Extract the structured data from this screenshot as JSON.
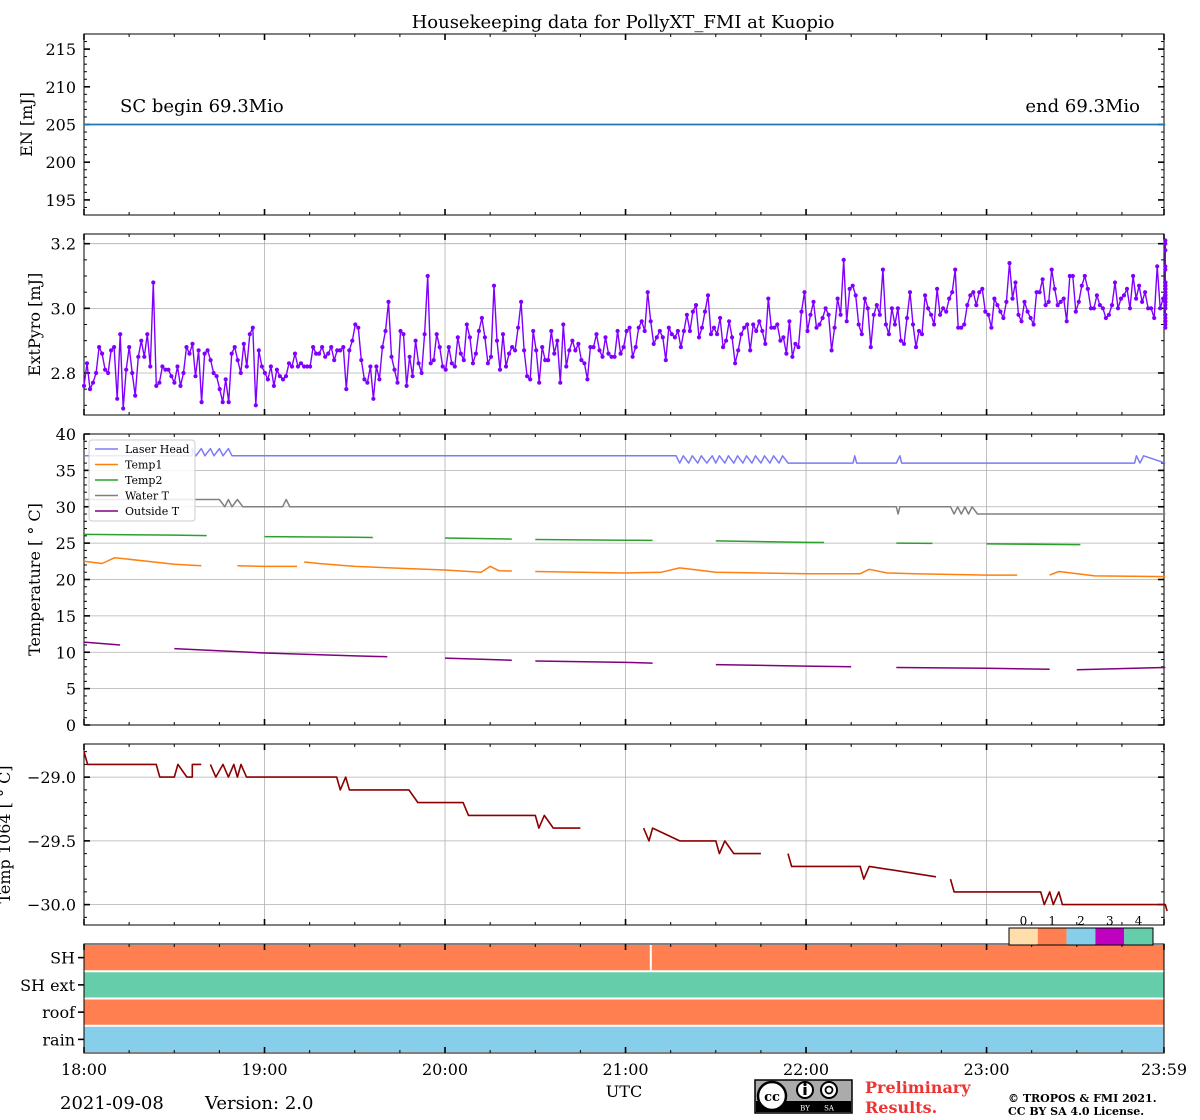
{
  "chart_data": [
    {
      "type": "line",
      "panel": "energy",
      "title": "Housekeeping data for PollyXT_FMI at Kuopio",
      "ylabel": "EN [mJ]",
      "ylim": [
        193,
        217
      ],
      "yticks": [
        195,
        200,
        205,
        210,
        215
      ],
      "grid": false,
      "series": [
        {
          "values": [
            205,
            205
          ],
          "x": [
            18.0,
            23.99
          ],
          "color": "#1f77b4"
        }
      ],
      "annotations": {
        "begin": "SC begin 69.3Mio",
        "end": "end 69.3Mio"
      }
    },
    {
      "type": "line",
      "panel": "extpyro",
      "ylabel": "ExtPyro [mJ]",
      "ylim": [
        2.67,
        3.23
      ],
      "yticks": [
        2.8,
        3.0,
        3.2
      ],
      "ytick_labels": [
        "2.8",
        "3.0",
        "3.2"
      ],
      "grid": true,
      "color": "#8000ff",
      "x_start": 18.0,
      "x_step": 0.0167,
      "values": [
        2.76,
        2.83,
        2.75,
        2.77,
        2.8,
        2.88,
        2.86,
        2.81,
        2.8,
        2.87,
        2.88,
        2.72,
        2.92,
        2.69,
        2.81,
        2.88,
        2.8,
        2.73,
        2.85,
        2.9,
        2.85,
        2.92,
        2.82,
        3.08,
        2.76,
        2.77,
        2.82,
        2.81,
        2.81,
        2.79,
        2.77,
        2.82,
        2.76,
        2.8,
        2.88,
        2.86,
        2.89,
        2.79,
        2.87,
        2.71,
        2.86,
        2.87,
        2.84,
        2.8,
        2.79,
        2.75,
        2.71,
        2.78,
        2.71,
        2.86,
        2.88,
        2.84,
        2.8,
        2.89,
        2.82,
        2.92,
        2.94,
        2.7,
        2.87,
        2.82,
        2.8,
        2.78,
        2.82,
        2.76,
        2.81,
        2.79,
        2.78,
        2.79,
        2.83,
        2.82,
        2.86,
        2.82,
        2.83,
        2.82,
        2.82,
        2.82,
        2.88,
        2.86,
        2.86,
        2.88,
        2.85,
        2.86,
        2.88,
        2.84,
        2.87,
        2.87,
        2.88,
        2.75,
        2.87,
        2.9,
        2.95,
        2.94,
        2.84,
        2.78,
        2.77,
        2.82,
        2.72,
        2.82,
        2.78,
        2.88,
        2.93,
        3.02,
        2.85,
        2.81,
        2.77,
        2.93,
        2.92,
        2.76,
        2.85,
        2.79,
        2.9,
        2.83,
        2.8,
        2.92,
        3.1,
        2.83,
        2.84,
        2.92,
        2.88,
        2.82,
        2.81,
        2.88,
        2.83,
        2.82,
        2.91,
        2.86,
        2.84,
        2.95,
        2.91,
        2.83,
        2.86,
        2.93,
        2.97,
        2.91,
        2.83,
        2.85,
        3.07,
        2.9,
        2.81,
        2.92,
        2.82,
        2.86,
        2.88,
        2.87,
        2.94,
        3.02,
        2.87,
        2.79,
        2.78,
        2.93,
        2.87,
        2.77,
        2.88,
        2.84,
        2.84,
        2.93,
        2.86,
        2.9,
        2.77,
        2.95,
        2.82,
        2.87,
        2.9,
        2.87,
        2.89,
        2.84,
        2.83,
        2.78,
        2.88,
        2.88,
        2.92,
        2.87,
        2.85,
        2.91,
        2.86,
        2.85,
        2.85,
        2.93,
        2.86,
        2.88,
        2.93,
        2.94,
        2.85,
        2.88,
        2.94,
        2.96,
        2.93,
        3.05,
        2.96,
        2.89,
        2.91,
        2.93,
        2.91,
        2.84,
        2.94,
        2.92,
        2.91,
        2.93,
        2.88,
        2.93,
        2.98,
        2.93,
        2.99,
        3.01,
        2.91,
        2.94,
        2.99,
        3.04,
        2.92,
        2.94,
        2.92,
        2.97,
        2.88,
        2.9,
        2.96,
        2.91,
        2.83,
        2.87,
        2.92,
        2.94,
        2.95,
        2.87,
        2.95,
        2.93,
        2.96,
        2.93,
        2.89,
        3.03,
        2.94,
        2.94,
        2.95,
        2.9,
        2.91,
        2.86,
        2.96,
        2.85,
        2.89,
        2.88,
        2.99,
        3.05,
        2.93,
        2.98,
        3.02,
        2.94,
        2.95,
        2.97,
        3.0,
        2.98,
        2.87,
        2.94,
        3.03,
        2.98,
        3.15,
        2.96,
        3.06,
        3.07,
        3.04,
        2.95,
        2.92,
        3.03,
        3.0,
        2.88,
        2.98,
        3.01,
        2.98,
        3.12,
        2.95,
        2.92,
        3.0,
        2.95,
        3.0,
        2.9,
        2.89,
        2.97,
        3.05,
        2.95,
        2.88,
        2.93,
        2.92,
        3.04,
        3.0,
        2.98,
        2.95,
        3.06,
        2.98,
        3.0,
        2.99,
        3.03,
        3.05,
        3.12,
        2.94,
        2.94,
        2.95,
        3.01,
        3.04,
        3.05,
        3.01,
        3.05,
        3.06,
        2.99,
        2.98,
        2.94,
        3.03,
        3.01,
        2.99,
        2.97,
        3.02,
        3.14,
        3.03,
        3.08,
        2.98,
        2.96,
        3.02,
        2.99,
        2.97,
        2.95,
        3.05,
        3.05,
        3.09,
        3.01,
        3.02,
        3.12,
        3.06,
        3.01,
        3.02,
        3.03,
        2.96,
        3.1,
        3.1,
        2.99,
        3.02,
        3.07,
        3.1,
        3.06,
        3.0,
        3.0,
        3.04,
        3.01,
        3.0,
        2.97,
        2.98,
        3.01,
        3.08,
        3.0,
        3.03,
        3.04,
        3.06,
        3.0,
        3.1,
        3.03,
        3.07,
        3.02,
        3.05,
        3.0,
        3.0,
        2.97,
        3.13,
        3.0,
        3.03,
        3.01,
        2.96,
        3.04,
        3.02,
        3.03,
        3.06,
        3.08,
        3.04,
        2.97,
        3.02,
        3.08,
        3.13,
        3.0,
        3.03,
        2.94,
        3.04,
        2.96,
        3.04,
        3.18,
        3.05,
        3.0,
        3.08,
        2.98,
        2.95,
        2.96,
        3.06,
        3.07,
        3.07,
        3.07,
        3.05,
        3.03,
        3.08,
        3.21,
        3.12,
        3.08,
        3.06,
        2.98,
        3.02,
        3.07,
        3.2,
        3.04,
        3.06,
        3.08,
        3.02,
        3.04,
        3.04,
        3.04,
        3.04,
        3.04,
        3.04,
        3.04,
        3.04,
        3.05,
        3.03,
        3.07
      ]
    },
    {
      "type": "line",
      "panel": "temperature",
      "ylabel": "Temperature [$^\\circ C$]",
      "ylim": [
        0,
        40
      ],
      "yticks": [
        0,
        5,
        10,
        15,
        20,
        25,
        30,
        35,
        40
      ],
      "grid": true,
      "legend": "top-left",
      "series": [
        {
          "name": "Laser Head",
          "color": "#7b7bf7",
          "x": [
            18.0,
            18.6,
            18.6,
            18.62,
            18.65,
            18.67,
            18.7,
            18.72,
            18.75,
            18.77,
            18.8,
            18.82,
            18.85,
            21.28,
            21.3,
            21.32,
            21.35,
            21.37,
            21.4,
            21.42,
            21.45,
            21.48,
            21.5,
            21.52,
            21.55,
            21.57,
            21.6,
            21.62,
            21.65,
            21.67,
            21.7,
            21.72,
            21.75,
            21.77,
            21.8,
            21.82,
            21.85,
            21.87,
            21.9,
            21.93,
            22.26,
            22.27,
            22.28,
            22.5,
            22.52,
            22.53,
            23.82,
            23.83,
            23.85,
            23.87,
            23.99
          ],
          "y": [
            37,
            37,
            38,
            37,
            38,
            37,
            38,
            37,
            38,
            37,
            38,
            37,
            37,
            37,
            36,
            37,
            36,
            37,
            36,
            37,
            36,
            37,
            36,
            37,
            36,
            37,
            36,
            37,
            36,
            37,
            36,
            37,
            36,
            37,
            36,
            37,
            36,
            37,
            36,
            36,
            36,
            37,
            36,
            36,
            37,
            36,
            36,
            37,
            36,
            37,
            36
          ]
        },
        {
          "name": "Temp1",
          "color": "#ff7f0e",
          "x": [
            18.0,
            18.1,
            18.17,
            18.35,
            18.5,
            18.65,
            18.85,
            19.0,
            19.2,
            19.22,
            19.3,
            19.5,
            19.8,
            20.0,
            20.2,
            20.25,
            20.3,
            20.5,
            21.0,
            21.2,
            21.3,
            21.5,
            22.0,
            22.3,
            22.35,
            22.45,
            22.6,
            23.0,
            23.35,
            23.4,
            23.6,
            23.99
          ],
          "y": [
            22.5,
            22.2,
            23.0,
            22.5,
            22.1,
            21.9,
            21.9,
            21.8,
            21.8,
            22.4,
            22.2,
            21.8,
            21.5,
            21.3,
            21.0,
            21.8,
            21.2,
            21.1,
            20.9,
            21.0,
            21.6,
            21.0,
            20.8,
            20.8,
            21.4,
            20.9,
            20.8,
            20.6,
            20.6,
            21.1,
            20.5,
            20.4
          ]
        },
        {
          "name": "Temp2",
          "color": "#2ca02c",
          "x": [
            18.0,
            18.5,
            19.0,
            19.5,
            20.0,
            20.5,
            21.0,
            21.5,
            22.0,
            22.5,
            23.0,
            23.5,
            23.99
          ],
          "y": [
            26.2,
            26.1,
            25.9,
            25.8,
            25.7,
            25.5,
            25.4,
            25.3,
            25.1,
            25.0,
            24.9,
            24.8,
            24.7
          ]
        },
        {
          "name": "Water T",
          "color": "#808080",
          "x": [
            18.0,
            18.75,
            18.78,
            18.8,
            18.82,
            18.85,
            18.88,
            18.9,
            19.1,
            19.12,
            19.14,
            22.5,
            22.51,
            22.52,
            22.8,
            22.82,
            22.84,
            22.86,
            22.88,
            22.9,
            22.92,
            22.95,
            23.0,
            23.99
          ],
          "y": [
            31,
            31,
            30,
            31,
            30,
            31,
            30,
            30,
            30,
            31,
            30,
            30,
            29,
            30,
            30,
            29,
            30,
            29,
            30,
            29,
            30,
            29,
            29,
            29
          ]
        },
        {
          "name": "Outside T",
          "color": "#800080",
          "x": [
            18.0,
            18.2,
            18.5,
            19.0,
            19.5,
            20.0,
            20.5,
            21.0,
            21.5,
            22.0,
            22.5,
            23.0,
            23.5,
            23.99
          ],
          "y": [
            11.4,
            11.0,
            10.5,
            9.9,
            9.5,
            9.2,
            8.8,
            8.6,
            8.3,
            8.1,
            7.9,
            7.8,
            7.6,
            7.9
          ]
        }
      ],
      "gaps": {
        "Temp1": [
          [
            18.65,
            18.68
          ],
          [
            19.18,
            19.2
          ],
          [
            20.37,
            20.42
          ],
          [
            23.17,
            23.23
          ]
        ],
        "Temp2": [
          [
            18.68,
            18.72
          ],
          [
            19.6,
            19.63
          ],
          [
            20.37,
            20.4
          ],
          [
            21.15,
            21.2
          ],
          [
            22.1,
            22.15
          ],
          [
            22.7,
            22.74
          ],
          [
            23.52,
            23.57
          ]
        ],
        "Outside T": [
          [
            18.2,
            18.22
          ],
          [
            19.68,
            19.71
          ],
          [
            20.37,
            20.4
          ],
          [
            21.15,
            21.18
          ],
          [
            22.25,
            22.3
          ],
          [
            23.35,
            23.4
          ]
        ]
      }
    },
    {
      "type": "line",
      "panel": "temp1064",
      "ylabel": "Temp 1064 [$^\\circ C$]",
      "ylim": [
        -30.16,
        -28.74
      ],
      "yticks": [
        -29.0,
        -29.5,
        -30.0
      ],
      "ytick_labels": [
        "−29.0",
        "−29.5",
        "−30.0"
      ],
      "grid": true,
      "color": "#8b0000",
      "x": [
        18.0,
        18.02,
        18.25,
        18.4,
        18.42,
        18.45,
        18.5,
        18.52,
        18.57,
        18.6,
        18.63,
        18.6,
        18.65,
        18.67,
        18.7,
        18.73,
        18.77,
        18.8,
        18.83,
        18.85,
        18.87,
        18.9,
        19.0,
        19.4,
        19.42,
        19.45,
        19.47,
        19.5,
        19.8,
        19.85,
        20.1,
        20.13,
        20.5,
        20.52,
        20.55,
        20.6,
        20.8,
        21.1,
        21.13,
        21.15,
        21.3,
        21.5,
        21.52,
        21.55,
        21.6,
        21.9,
        21.92,
        22.3,
        22.32,
        22.35,
        22.8,
        22.82,
        23.3,
        23.32,
        23.35,
        23.37,
        23.4,
        23.42,
        23.99,
        24.0
      ],
      "y": [
        -28.8,
        -28.9,
        -28.9,
        -28.9,
        -29.0,
        -29.0,
        -29.0,
        -28.9,
        -29.0,
        -29.0,
        -28.9,
        -28.9,
        -28.9,
        -29.0,
        -28.9,
        -29.0,
        -28.9,
        -29.0,
        -28.9,
        -29.0,
        -28.9,
        -29.0,
        -29.0,
        -29.0,
        -29.1,
        -29.0,
        -29.1,
        -29.1,
        -29.1,
        -29.2,
        -29.2,
        -29.3,
        -29.3,
        -29.4,
        -29.3,
        -29.4,
        -29.4,
        -29.4,
        -29.5,
        -29.4,
        -29.5,
        -29.5,
        -29.6,
        -29.5,
        -29.6,
        -29.6,
        -29.7,
        -29.7,
        -29.8,
        -29.7,
        -29.8,
        -29.9,
        -29.9,
        -30.0,
        -29.9,
        -30.0,
        -29.9,
        -30.0,
        -30.0,
        -30.05
      ],
      "gaps": [
        [
          18.65,
          18.67
        ],
        [
          20.75,
          20.82
        ],
        [
          21.75,
          21.8
        ],
        [
          22.72,
          22.75
        ]
      ]
    },
    {
      "type": "heatmap",
      "panel": "status",
      "rows": [
        "SH",
        "SH ext",
        "roof",
        "rain"
      ],
      "row_values": [
        1,
        4,
        1,
        2
      ],
      "colorbar": {
        "ticks": [
          "0",
          "1",
          "2",
          "3",
          "4"
        ],
        "colors": [
          "#ffdeab",
          "#ff7f50",
          "#87ceeb",
          "#c000c0",
          "#66cdaa"
        ]
      },
      "sh_gap_x": 21.14,
      "xlabel": "UTC",
      "xlim": [
        18.0,
        23.983
      ],
      "xticks": [
        18,
        19,
        20,
        21,
        22,
        23,
        23.983
      ],
      "xtick_labels": [
        "18:00",
        "19:00",
        "20:00",
        "21:00",
        "22:00",
        "23:00",
        "23:59"
      ]
    }
  ],
  "footer": {
    "date": "2021-09-08",
    "version": "Version: 2.0",
    "cc_badge": "cc",
    "cc_by": "BY",
    "cc_sa": "SA",
    "preliminary_line1": "Preliminary",
    "preliminary_line2": "Results.",
    "copyright_line1": "© TROPOS & FMI 2021.",
    "copyright_line2": "CC BY SA 4.0 License."
  }
}
